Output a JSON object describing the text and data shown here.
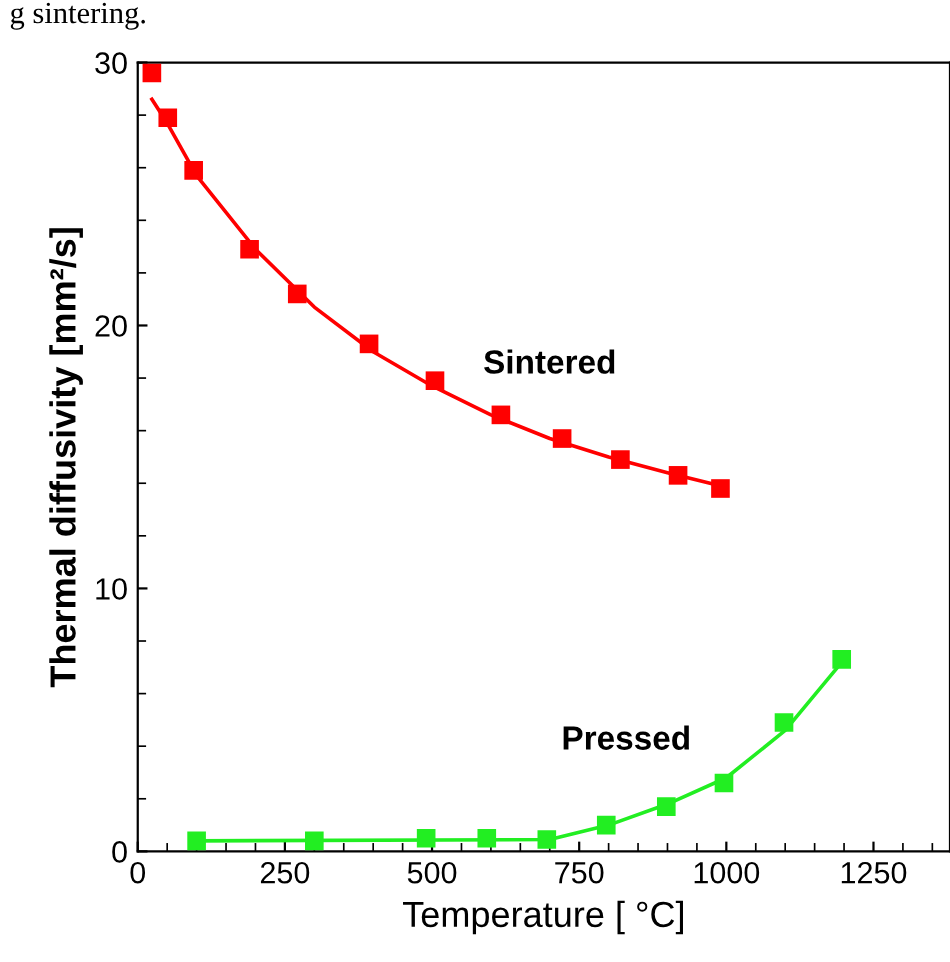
{
  "chart_data": {
    "type": "scatter",
    "xlabel": "Temperature [ °C]",
    "ylabel": "Thermal diffusivity [mm²/s]",
    "annotations": [
      "g sintering."
    ],
    "xlim": [
      0,
      1380
    ],
    "ylim": [
      0,
      30
    ],
    "xticks": [
      0,
      250,
      500,
      750,
      1000,
      1250
    ],
    "yticks": [
      0,
      10,
      20,
      30
    ],
    "grid": false,
    "legend": false,
    "marker": "square",
    "series": [
      {
        "name": "Sintered",
        "color": "#ff0000",
        "x": [
          24,
          51,
          95,
          190,
          271,
          393,
          505,
          617,
          721,
          820,
          918,
          990
        ],
        "values": [
          29.6,
          27.9,
          25.9,
          22.9,
          21.2,
          19.3,
          17.9,
          16.6,
          15.7,
          14.9,
          14.3,
          13.8
        ]
      },
      {
        "type": "line",
        "marker": "none",
        "color": "#ff0000",
        "x": [
          24,
          50,
          100,
          200,
          300,
          400,
          500,
          600,
          700,
          800,
          900,
          990
        ],
        "values": [
          28.6,
          27.7,
          25.7,
          22.9,
          20.7,
          19.0,
          17.7,
          16.6,
          15.7,
          15.0,
          14.4,
          13.9
        ]
      },
      {
        "name": "Pressed",
        "color": "#22ee22",
        "x": [
          100,
          300,
          490,
          593,
          695,
          796,
          898,
          996,
          1098,
          1196
        ],
        "values": [
          0.4,
          0.4,
          0.5,
          0.5,
          0.45,
          1.0,
          1.7,
          2.6,
          4.9,
          7.3
        ]
      },
      {
        "type": "line",
        "marker": "none",
        "color": "#22ee22",
        "x": [
          100,
          700,
          800,
          900,
          1000,
          1100,
          1200
        ],
        "values": [
          0.4,
          0.45,
          1.0,
          1.8,
          2.8,
          4.6,
          7.3
        ]
      }
    ]
  }
}
